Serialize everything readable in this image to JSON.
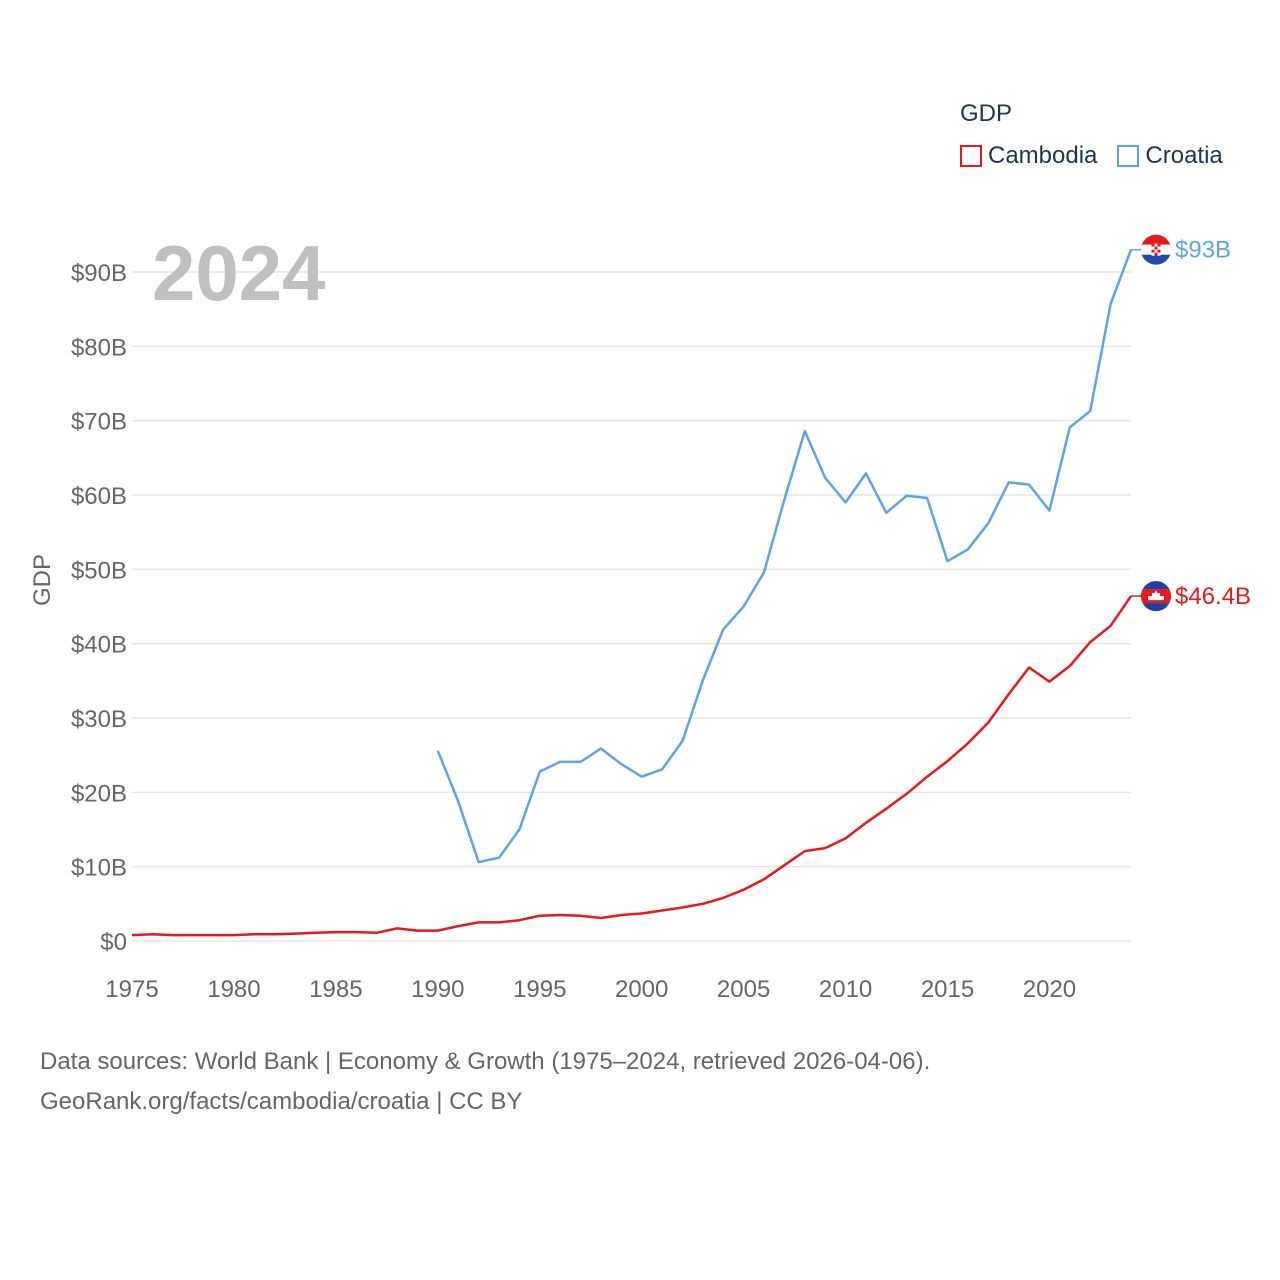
{
  "legend": {
    "title": "GDP",
    "items": [
      {
        "label": "Cambodia",
        "color": "#e8191a"
      },
      {
        "label": "Croatia",
        "color": "#5fa4e6"
      }
    ]
  },
  "year_label": "2024",
  "source": {
    "line1": "Data sources: World Bank | Economy & Growth (1975–2024, retrieved 2026-04-06).",
    "line2": "GeoRank.org/facts/cambodia/croatia | CC BY"
  },
  "chart_data": {
    "type": "line",
    "title": "",
    "xlabel": "",
    "ylabel": "GDP",
    "xlim": [
      1975,
      2024
    ],
    "ylim": [
      0,
      90
    ],
    "y_unit": "billion USD",
    "grid": true,
    "x_ticks": [
      1975,
      1980,
      1985,
      1990,
      1995,
      2000,
      2005,
      2010,
      2015,
      2020
    ],
    "x_tick_labels": [
      "1975",
      "1980",
      "1985",
      "1990",
      "1995",
      "2000",
      "2005",
      "2010",
      "2015",
      "2020"
    ],
    "y_ticks": [
      0,
      10,
      20,
      30,
      40,
      50,
      60,
      70,
      80,
      90
    ],
    "y_tick_labels": [
      "$0",
      "$10B",
      "$20B",
      "$30B",
      "$40B",
      "$50B",
      "$60B",
      "$70B",
      "$80B",
      "$90B"
    ],
    "legend_position": "top-right",
    "series": [
      {
        "name": "Cambodia",
        "color": "#e8191a",
        "end_label": "$46.4B",
        "flag": "cambodia",
        "x": [
          1975,
          1976,
          1977,
          1978,
          1979,
          1980,
          1981,
          1982,
          1983,
          1984,
          1985,
          1986,
          1987,
          1988,
          1989,
          1990,
          1991,
          1992,
          1993,
          1994,
          1995,
          1996,
          1997,
          1998,
          1999,
          2000,
          2001,
          2002,
          2003,
          2004,
          2005,
          2006,
          2007,
          2008,
          2009,
          2010,
          2011,
          2012,
          2013,
          2014,
          2015,
          2016,
          2017,
          2018,
          2019,
          2020,
          2021,
          2022,
          2023,
          2024
        ],
        "values": [
          0.8,
          0.9,
          0.8,
          0.8,
          0.8,
          0.8,
          0.9,
          0.9,
          1.0,
          1.1,
          1.2,
          1.2,
          1.1,
          1.7,
          1.4,
          1.4,
          2.0,
          2.5,
          2.5,
          2.8,
          3.4,
          3.5,
          3.4,
          3.1,
          3.5,
          3.7,
          4.1,
          4.5,
          5.0,
          5.8,
          6.9,
          8.3,
          10.2,
          12.1,
          12.5,
          13.8,
          15.9,
          17.8,
          19.8,
          22.1,
          24.2,
          26.6,
          29.4,
          33.2,
          36.8,
          34.9,
          37.0,
          40.2,
          42.4,
          46.4
        ]
      },
      {
        "name": "Croatia",
        "color": "#5fa4e6",
        "end_label": "$93B",
        "flag": "croatia",
        "x": [
          1990,
          1991,
          1992,
          1993,
          1994,
          1995,
          1996,
          1997,
          1998,
          1999,
          2000,
          2001,
          2002,
          2003,
          2004,
          2005,
          2006,
          2007,
          2008,
          2009,
          2010,
          2011,
          2012,
          2013,
          2014,
          2015,
          2016,
          2017,
          2018,
          2019,
          2020,
          2021,
          2022,
          2023,
          2024
        ],
        "values": [
          25.6,
          18.8,
          10.6,
          11.2,
          15.0,
          22.8,
          24.1,
          24.1,
          25.9,
          23.8,
          22.1,
          23.1,
          26.9,
          35.1,
          41.9,
          45.0,
          49.6,
          59.4,
          68.6,
          62.3,
          59.0,
          62.9,
          57.6,
          59.9,
          59.6,
          51.1,
          52.7,
          56.2,
          61.7,
          61.4,
          57.9,
          69.1,
          71.3,
          85.7,
          93.0
        ]
      }
    ]
  }
}
